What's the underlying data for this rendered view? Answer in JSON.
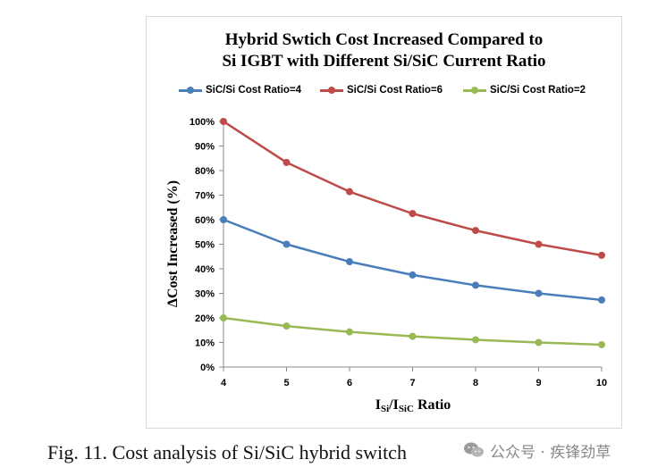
{
  "chart_data": {
    "type": "line",
    "title_line1": "Hybrid Swtich Cost Increased Compared to",
    "title_line2": "Si IGBT with Different Si/SiC Current Ratio",
    "xlabel_main": "I",
    "xlabel_sub1": "Si",
    "xlabel_slash": "/I",
    "xlabel_sub2": "SiC",
    "xlabel_suffix": " Ratio",
    "ylabel": "ΔCost Increased (%)",
    "x": [
      4,
      5,
      6,
      7,
      8,
      9,
      10
    ],
    "x_tick_labels": [
      "4",
      "5",
      "6",
      "7",
      "8",
      "9",
      "10"
    ],
    "ylim": [
      0,
      100
    ],
    "y_ticks": [
      0,
      10,
      20,
      30,
      40,
      50,
      60,
      70,
      80,
      90,
      100
    ],
    "y_tick_labels": [
      "0%",
      "10%",
      "20%",
      "30%",
      "40%",
      "50%",
      "60%",
      "70%",
      "80%",
      "90%",
      "100%"
    ],
    "grid": false,
    "legend_position": "top",
    "series": [
      {
        "name": "SiC/Si Cost Ratio=4",
        "color": "#4a7ebb",
        "values": [
          60,
          50,
          42.9,
          37.5,
          33.3,
          30,
          27.3
        ]
      },
      {
        "name": "SiC/Si Cost Ratio=6",
        "color": "#be4b48",
        "values": [
          100,
          83.3,
          71.4,
          62.5,
          55.6,
          50,
          45.5
        ]
      },
      {
        "name": "SiC/Si Cost Ratio=2",
        "color": "#98b954",
        "values": [
          20,
          16.7,
          14.3,
          12.5,
          11.1,
          10,
          9.1
        ]
      }
    ]
  },
  "caption": "Fig. 11. Cost analysis of Si/SiC hybrid switch",
  "watermark": {
    "icon": "wechat-icon",
    "text": "公众号 · 疾锋劲草"
  }
}
